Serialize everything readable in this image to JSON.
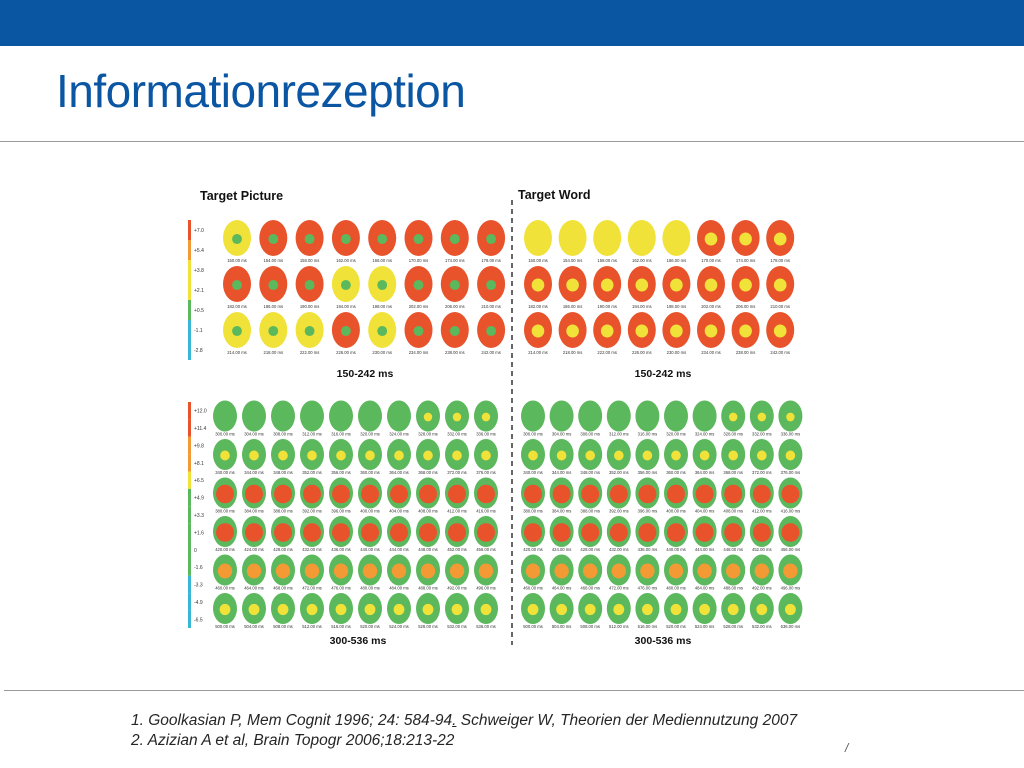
{
  "slide": {
    "title": "Informationrezeption",
    "page_number": "/"
  },
  "figure": {
    "left_title": "Target Picture",
    "right_title": "Target Word",
    "top_caption": "150-242 ms",
    "bottom_caption": "300-536 ms",
    "top_scale": [
      "+7.0",
      "+5.4",
      "+3.8",
      "+2.1",
      "+0.5",
      "-1.1",
      "-2.8"
    ],
    "bottom_scale": [
      "+12.0",
      "+11.4",
      "+9.8",
      "+8.1",
      "+6.5",
      "+4.9",
      "+3.3",
      "+1.6",
      "0",
      "-1.6",
      "-3.3",
      "-4.9",
      "-6.5"
    ],
    "top_row_labels": [
      [
        "150.00 ms",
        "154.00 ms",
        "158.00 ms",
        "162.00 ms",
        "166.00 ms",
        "170.00 ms",
        "174.00 ms",
        "178.00 ms"
      ],
      [
        "182.00 ms",
        "186.00 ms",
        "190.00 ms",
        "194.00 ms",
        "198.00 ms",
        "202.00 ms",
        "206.00 ms",
        "210.00 ms"
      ],
      [
        "214.00 ms",
        "218.00 ms",
        "222.00 ms",
        "226.00 ms",
        "230.00 ms",
        "234.00 ms",
        "238.00 ms",
        "242.00 ms"
      ]
    ],
    "bottom_row_labels": [
      [
        "300.00 ms",
        "304.00 ms",
        "308.00 ms",
        "312.00 ms",
        "316.00 ms",
        "320.00 ms",
        "324.00 ms",
        "328.00 ms",
        "332.00 ms",
        "336.00 ms"
      ],
      [
        "340.00 ms",
        "344.00 ms",
        "348.00 ms",
        "352.00 ms",
        "356.00 ms",
        "360.00 ms",
        "364.00 ms",
        "368.00 ms",
        "372.00 ms",
        "376.00 ms"
      ],
      [
        "380.00 ms",
        "384.00 ms",
        "388.00 ms",
        "392.00 ms",
        "396.00 ms",
        "400.00 ms",
        "404.00 ms",
        "408.00 ms",
        "412.00 ms",
        "416.00 ms"
      ],
      [
        "420.00 ms",
        "424.00 ms",
        "428.00 ms",
        "432.00 ms",
        "436.00 ms",
        "440.00 ms",
        "444.00 ms",
        "448.00 ms",
        "452.00 ms",
        "456.00 ms"
      ],
      [
        "460.00 ms",
        "464.00 ms",
        "468.00 ms",
        "472.00 ms",
        "476.00 ms",
        "480.00 ms",
        "484.00 ms",
        "488.00 ms",
        "492.00 ms",
        "496.00 ms"
      ],
      [
        "500.00 ms",
        "504.00 ms",
        "508.00 ms",
        "512.00 ms",
        "516.00 ms",
        "520.00 ms",
        "524.00 ms",
        "528.00 ms",
        "532.00 ms",
        "536.00 ms"
      ]
    ]
  },
  "references": {
    "line1_main": "1. Goolkasian P, Mem Cognit 1996; 24: 584-94",
    "line1_link": ".",
    "line1_rest": " Schweiger W, Theorien der Mediennutzung 2007",
    "line2": "2. Azizian A et al, Brain Topogr 2006;18:213-22"
  },
  "colors": {
    "brand_blue": "#0a56a3",
    "map_red": "#e8532c",
    "map_orange": "#f39a34",
    "map_yellow": "#f1e23a",
    "map_green": "#5cb85c",
    "map_cyan": "#37b6d6"
  }
}
